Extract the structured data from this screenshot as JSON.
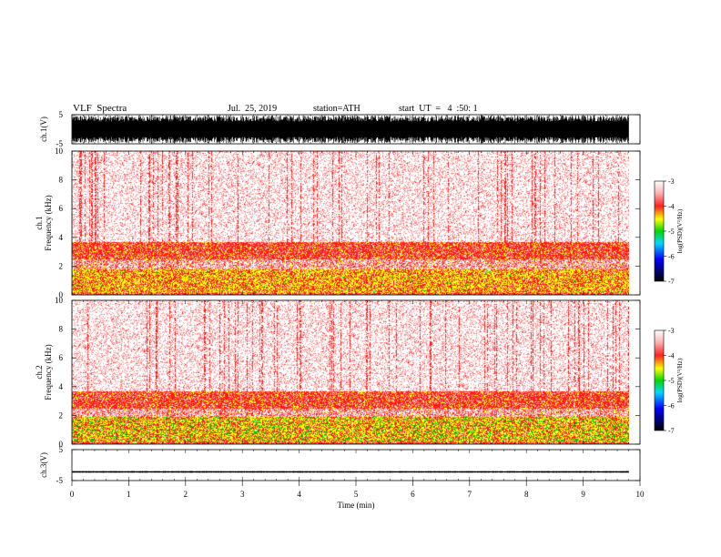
{
  "header": {
    "title": "VLF  Spectra",
    "date": "Jul.  25, 2019",
    "station": "station=ATH",
    "start": "start  UT  =   4  :50: 1"
  },
  "colors": {
    "palette": [
      "#ffffff",
      "#ff8a8a",
      "#ff1a1a",
      "#ffff00",
      "#00d800",
      "#00d8ff",
      "#0000ff",
      "#000000"
    ],
    "trace": "#000000"
  },
  "chart_data": [
    {
      "type": "line",
      "name": "ch1-waveform",
      "ylabel": "ch.1(V)",
      "ylim": [
        -5,
        5
      ],
      "yticks": [
        "5",
        "-5"
      ],
      "x_range": [
        0,
        9.8
      ],
      "amplitude_envelope": [
        -4.8,
        4.8
      ]
    },
    {
      "type": "heatmap",
      "name": "ch1-spectrogram",
      "ylabel_lines": [
        "ch.1",
        "Frequency  (kHz)"
      ],
      "ylim": [
        0,
        10
      ],
      "yticks": [
        "10",
        "8",
        "6",
        "4",
        "2",
        "0"
      ],
      "x_range": [
        0,
        9.8
      ],
      "bands": [
        {
          "from": 0.0,
          "to": 0.15,
          "level": "high"
        },
        {
          "from": 0.15,
          "to": 1.8,
          "level": "very-high"
        },
        {
          "from": 1.8,
          "to": 2.5,
          "level": "medium"
        },
        {
          "from": 2.5,
          "to": 3.7,
          "level": "high"
        },
        {
          "from": 3.7,
          "to": 10.0,
          "level": "low"
        }
      ],
      "colorbar": {
        "label": "log(PSD)(V²/Hz)",
        "ticks": [
          "-3",
          "-4",
          "-5",
          "-6",
          "-7"
        ],
        "range": [
          -7,
          -3
        ]
      }
    },
    {
      "type": "heatmap",
      "name": "ch2-spectrogram",
      "ylabel_lines": [
        "ch.2",
        "Frequency  (kHz)"
      ],
      "ylim": [
        0,
        10
      ],
      "yticks": [
        "10",
        "8",
        "6",
        "4",
        "2",
        "0"
      ],
      "x_range": [
        0,
        9.8
      ],
      "bands": [
        {
          "from": 0.0,
          "to": 0.15,
          "level": "high"
        },
        {
          "from": 0.15,
          "to": 1.9,
          "level": "very-high-green"
        },
        {
          "from": 1.9,
          "to": 2.5,
          "level": "medium"
        },
        {
          "from": 2.5,
          "to": 3.7,
          "level": "high"
        },
        {
          "from": 3.7,
          "to": 10.0,
          "level": "low"
        }
      ],
      "colorbar": {
        "label": "log(PSD)(V²/Hz)",
        "ticks": [
          "-3",
          "-4",
          "-5",
          "-6",
          "-7"
        ],
        "range": [
          -7,
          -3
        ]
      }
    },
    {
      "type": "line",
      "name": "ch3-waveform",
      "ylabel": "ch.3(V)",
      "ylim": [
        -5,
        5
      ],
      "yticks": [
        "5",
        "-5"
      ],
      "x_range": [
        0,
        9.8
      ],
      "offset": -2.2,
      "amplitude_envelope": [
        -0.3,
        0.3
      ]
    }
  ],
  "xaxis": {
    "label": "Time  (min)",
    "ticks": [
      "0",
      "1",
      "2",
      "3",
      "4",
      "5",
      "6",
      "7",
      "8",
      "9",
      "10"
    ],
    "range": [
      0,
      10
    ]
  }
}
